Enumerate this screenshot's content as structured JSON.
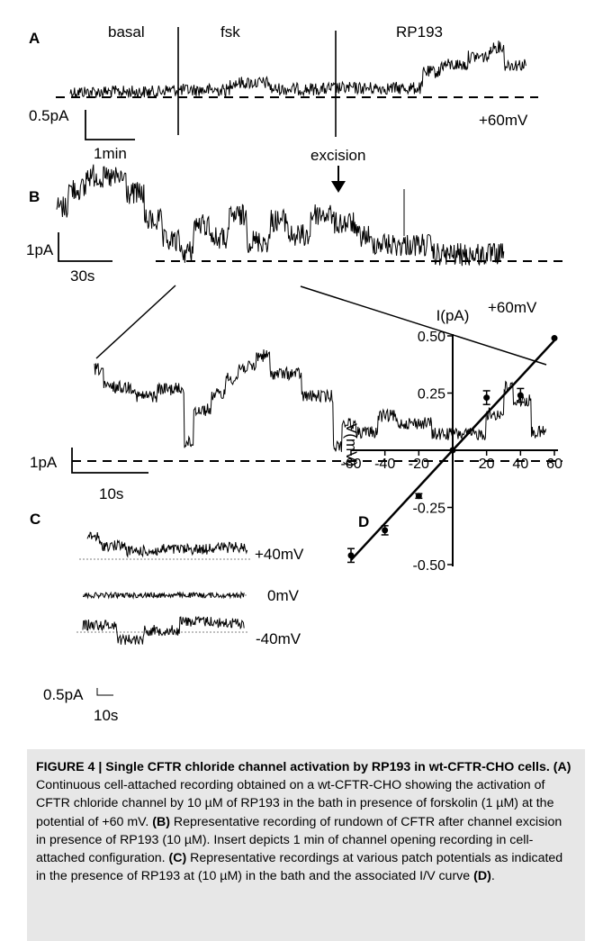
{
  "panelA": {
    "letter": "A",
    "labels": [
      "basal",
      "fsk",
      "RP193"
    ],
    "scale_current": "0.5pA",
    "scale_time": "1min",
    "voltage": "+60mV"
  },
  "panelB": {
    "letter": "B",
    "annotation": "excision",
    "scale_current": "1pA",
    "scale_time": "30s",
    "voltage": "+60mV"
  },
  "insert": {
    "scale_current": "1pA",
    "scale_time": "10s"
  },
  "panelC": {
    "letter": "C",
    "traces": [
      {
        "voltage": "+40mV"
      },
      {
        "voltage": "0mV"
      },
      {
        "voltage": "-40mV"
      }
    ],
    "scale_current": "0.5pA",
    "scale_time": "10s"
  },
  "chart_data": {
    "type": "scatter",
    "panel": "D",
    "xlabel": "V(mV)",
    "ylabel": "I(pA)",
    "xlim": [
      -60,
      60
    ],
    "ylim": [
      -0.5,
      0.5
    ],
    "x_ticks": [
      "-60",
      "-40",
      "-20",
      "0",
      "20",
      "40",
      "60"
    ],
    "y_ticks": [
      "0.50",
      "0.25",
      "-0.25",
      "-0.50"
    ],
    "points": [
      {
        "x": -60,
        "y": -0.46,
        "err": 0.03
      },
      {
        "x": -40,
        "y": -0.35,
        "err": 0.02
      },
      {
        "x": -20,
        "y": -0.2,
        "err": 0.01
      },
      {
        "x": 0,
        "y": 0.0,
        "err": 0.0
      },
      {
        "x": 20,
        "y": 0.23,
        "err": 0.03
      },
      {
        "x": 40,
        "y": 0.24,
        "err": 0.03
      },
      {
        "x": 60,
        "y": 0.49,
        "err": 0.0
      }
    ],
    "fit": {
      "x": [
        -60,
        60
      ],
      "y": [
        -0.48,
        0.48
      ]
    }
  },
  "caption": {
    "head": "FIGURE 4 | Single CFTR chloride channel activation by RP193 in wt-CFTR-CHO cells.",
    "A_tag": "(A)",
    "A_text": " Continuous cell-attached recording obtained on a wt-CFTR-CHO showing the activation of CFTR chloride channel by 10 µM of RP193 in the bath in presence of forskolin (1 µM) at the potential of +60 mV. ",
    "B_tag": "(B)",
    "B_text": " Representative recording of rundown of CFTR after channel excision in presence of RP193 (10 µM). Insert depicts 1 min of channel opening recording in cell-attached configuration. ",
    "C_tag": "(C)",
    "C_text": " Representative recordings at various patch potentials as indicated in the presence of RP193 at (10 µM) in the bath and the associated I/V curve ",
    "D_tag": "(D)",
    "D_end": "."
  }
}
